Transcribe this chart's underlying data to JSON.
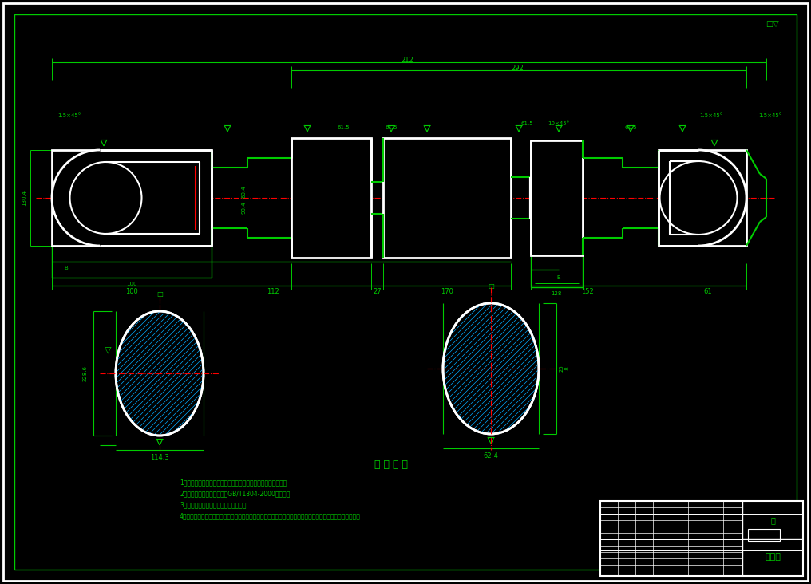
{
  "bg_color": "#000000",
  "line_color": "#00CC00",
  "red_color": "#FF0000",
  "white_color": "#FFFFFF",
  "hatch_color": "#00AAFF",
  "dim_color": "#00CC00",
  "title_text": "技 术 要 求",
  "notes": [
    "1、零件加工表面上，不应有划痕、碰伤等损伤零件表面的缺陷。",
    "2、未注编性尺寸公差应符合GB/T1804-2000的要求。",
    "3、加工后的零件不允许有毛刺、飞边。",
    "4、所有需要进行涂装的钢铁制件表面在涂漆前，必须将铁锈、氧化皮、油脂、灰尘、泥土、盐和污物等除去。"
  ],
  "title_block_text": "筒初组",
  "title_block_label": "轴"
}
